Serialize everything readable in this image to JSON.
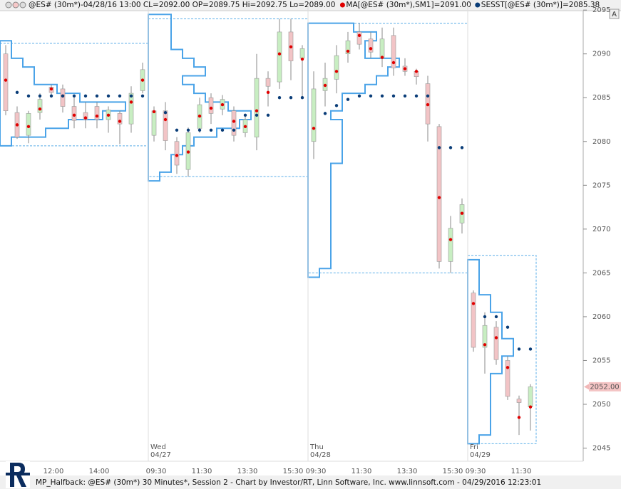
{
  "chart_data": {
    "type": "candlestick",
    "header": "@ES# (30m*)-04/28/16 13:00 CL=2092.00 OP=2089.75 Hi=2092.75 Lo=2089.00",
    "footer": "MP_Halfback: @ES# (30m*) 30 Minutes*, Session 2 - Chart by Investor/RT, Linn Software, Inc. www.linnsoft.com - 04/29/2016 12:23:01",
    "button": "A",
    "categories": [
      null,
      null,
      null,
      null,
      "12:00",
      null,
      null,
      null,
      "14:00",
      null,
      null,
      null,
      null,
      "09:30",
      null,
      null,
      null,
      "11:30",
      null,
      null,
      null,
      "13:30",
      null,
      null,
      null,
      "15:30",
      null,
      "09:30",
      null,
      null,
      null,
      "11:30",
      null,
      null,
      null,
      "13:30",
      null,
      null,
      null,
      "15:30",
      null,
      "09:30",
      null,
      null,
      null,
      "11:30",
      null
    ],
    "open": [
      2090,
      2083.3,
      2080.7,
      2083.3,
      2086.2,
      2086,
      2084,
      2083.3,
      2084,
      2082.5,
      2083.2,
      2082,
      2085.8,
      2080.7,
      2083.5,
      2080,
      2076.8,
      2081.5,
      2085,
      2083.7,
      2083.5,
      2081,
      2080.5,
      2087.2,
      2086.8,
      2092.5,
      2089.5,
      2080,
      2085.8,
      2087.1,
      2090,
      2092.5,
      2091.7,
      2089.5,
      2092.1,
      2088.6,
      2088,
      2086.6,
      2081.7,
      2066.3,
      2070.7,
      2062.7,
      2056.5,
      2058.8,
      2055,
      2050.6,
      2049.7
    ],
    "high": [
      2091,
      2084,
      2083.5,
      2085.5,
      2086.5,
      2086.5,
      2085,
      2084.5,
      2084.5,
      2084,
      2083.5,
      2086.3,
      2089,
      2084,
      2084.5,
      2080.5,
      2081.6,
      2085,
      2085.5,
      2085.3,
      2084,
      2083,
      2090,
      2088,
      2094,
      2094,
      2091,
      2088,
      2089,
      2091,
      2092.5,
      2093.5,
      2092.5,
      2093,
      2093,
      2089.5,
      2088.3,
      2087.5,
      2082,
      2071.5,
      2073.5,
      2063,
      2060.5,
      2059.5,
      2055.5,
      2051,
      2052.3
    ],
    "low": [
      2083,
      2080.3,
      2079.8,
      2082.5,
      2085,
      2083.3,
      2081.5,
      2081.5,
      2081.5,
      2081,
      2079.7,
      2081,
      2085.5,
      2080,
      2079,
      2076.3,
      2076,
      2081,
      2082,
      2083,
      2080,
      2080.5,
      2079,
      2084,
      2086,
      2087,
      2085,
      2078,
      2084,
      2085.5,
      2089,
      2090.5,
      2089.5,
      2088.5,
      2087.5,
      2087.5,
      2086.5,
      2080,
      2065.5,
      2065,
      2069.5,
      2056,
      2053.5,
      2054.5,
      2050.5,
      2046.5,
      2047
    ],
    "close": [
      2083.5,
      2080.5,
      2083.2,
      2084.8,
      2085.6,
      2084,
      2082.4,
      2082.5,
      2082.5,
      2083.6,
      2082,
      2085.5,
      2088.2,
      2083.5,
      2080.1,
      2077.3,
      2081,
      2084.2,
      2083.2,
      2084.8,
      2080.7,
      2082.5,
      2087.2,
      2086.3,
      2092.5,
      2089.2,
      2090.6,
      2086,
      2087.2,
      2089.8,
      2091.5,
      2091.1,
      2090.2,
      2091.7,
      2088.4,
      2088,
      2087.4,
      2082,
      2066.3,
      2070.1,
      2072.8,
      2056.5,
      2059,
      2055.1,
      2050.9,
      2050.2,
      2052
    ],
    "up_color": "#c8eec2",
    "down_color": "#f2c4c6",
    "series": [
      {
        "name": "MA[@ES# (30m*),SM1]=2091.00",
        "color": "#e00000",
        "values": [
          2087,
          2081.9,
          2081.7,
          2083.7,
          2086,
          2085.2,
          2083,
          2082.7,
          2082.9,
          2083,
          2082.3,
          2084.5,
          2087,
          2083.4,
          2082.5,
          2078.4,
          2078.8,
          2082.9,
          2083.8,
          2084.2,
          2082.3,
          2081.7,
          2083.5,
          2085.6,
          2090,
          2090.8,
          2089.4,
          2081.5,
          2086.4,
          2088,
          2090.3,
          2092.1,
          2090.6,
          2089.6,
          2089,
          2088.3,
          2088,
          2084.2,
          2073.6,
          2068.8,
          2071.8,
          2061.5,
          2056.8,
          2057.6,
          2054.2,
          2048.5,
          2049.7
        ]
      },
      {
        "name": "SESST[@ES# (30m*)]=2085.38",
        "color": "#0a3d78",
        "values": [
          null,
          2085.6,
          2085.2,
          2085.2,
          2085.2,
          2085.2,
          2085.2,
          2085.2,
          2085.2,
          2085.2,
          2085.2,
          2085.2,
          2085.2,
          null,
          2083.3,
          2081.3,
          2081.3,
          2081.3,
          2081.3,
          2081.3,
          2081.3,
          2083,
          2083,
          2083,
          2085,
          2085,
          2085,
          null,
          2083.2,
          2084.1,
          2084.8,
          2085.2,
          2085.2,
          2085.2,
          2085.2,
          2085.2,
          2085.2,
          2085.2,
          2079.3,
          2079.3,
          2079.3,
          null,
          2060,
          2060,
          2058.8,
          2056.3,
          2056.3
        ]
      }
    ],
    "sessions": [
      {
        "low": 2079.5,
        "high": 2091.2,
        "levels": [
          2091,
          2090,
          2089,
          2088,
          2087,
          2086,
          2085,
          2084,
          2083,
          2082,
          2081,
          2080
        ],
        "tpo": [
          1,
          1,
          2,
          3,
          3,
          5,
          7,
          11,
          9,
          6,
          4,
          1
        ]
      },
      {
        "day": "Wed",
        "date": "04/27",
        "low": 2076,
        "high": 2094,
        "levels": [
          2094,
          2093,
          2092,
          2091,
          2090,
          2089,
          2088,
          2087,
          2086,
          2085,
          2084,
          2083,
          2082,
          2081,
          2080,
          2079,
          2078,
          2077,
          2076
        ],
        "tpo": [
          2,
          2,
          2,
          2,
          3,
          4,
          5,
          3,
          4,
          5,
          7,
          9,
          8,
          6,
          4,
          3,
          2,
          2,
          1
        ]
      },
      {
        "day": "Thu",
        "date": "04/28",
        "low": 2065,
        "high": 2093.5,
        "levels": [
          2093,
          2092,
          2091,
          2090,
          2089,
          2088,
          2087,
          2086,
          2085,
          2084,
          2083,
          2082,
          2081,
          2080,
          2079,
          2078,
          2077,
          2076,
          2075,
          2074,
          2073,
          2072,
          2071,
          2070,
          2069,
          2068,
          2067,
          2066,
          2065
        ],
        "tpo": [
          4,
          6,
          5,
          5,
          8,
          7,
          6,
          5,
          3,
          3,
          2,
          3,
          3,
          3,
          3,
          3,
          2,
          2,
          2,
          2,
          2,
          2,
          2,
          2,
          2,
          2,
          2,
          2,
          1
        ]
      },
      {
        "day": "Fri",
        "date": "04/29",
        "low": 2045.5,
        "high": 2067,
        "levels": [
          2066,
          2065,
          2064,
          2063,
          2062,
          2061,
          2060,
          2059,
          2058,
          2057,
          2056,
          2055,
          2054,
          2053,
          2052,
          2051,
          2050,
          2049,
          2048,
          2047,
          2046
        ],
        "tpo": [
          1,
          1,
          1,
          1,
          2,
          2,
          3,
          3,
          3,
          4,
          4,
          3,
          3,
          2,
          2,
          2,
          2,
          2,
          2,
          2,
          1
        ]
      }
    ],
    "profile_color": "#4aa3e8",
    "ylim": [
      2043.5,
      2095.5
    ],
    "yticks": [
      2045,
      2050,
      2055,
      2060,
      2065,
      2070,
      2075,
      2080,
      2085,
      2090,
      2095
    ],
    "last_price": {
      "value": 2052,
      "label": "2052.00"
    }
  }
}
